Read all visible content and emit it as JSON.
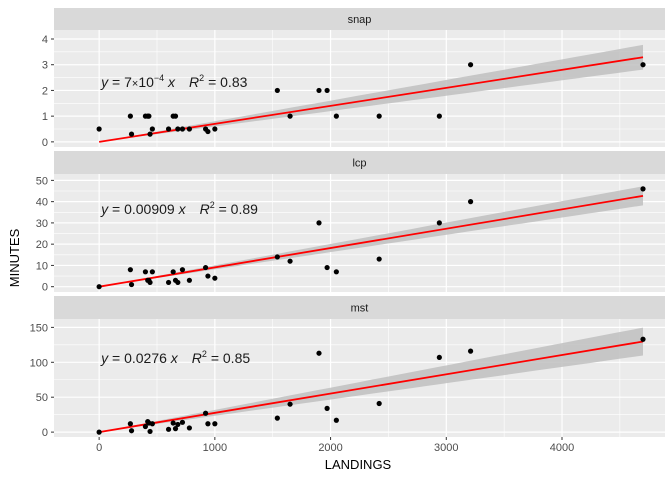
{
  "chart_data": {
    "type": "scatter",
    "xlabel": "LANDINGS",
    "ylabel": "MINUTES",
    "xlim": [
      -390,
      4890
    ],
    "xticks": [
      0,
      1000,
      2000,
      3000,
      4000
    ],
    "fit": "linear through origin with confidence band",
    "colors": {
      "points": "#000000",
      "fit_line": "#ff0000",
      "band": "#bfbfbf",
      "panel_bg": "#ebebeb",
      "strip_bg": "#d9d9d9",
      "grid": "#ffffff"
    },
    "x": [
      0,
      270,
      280,
      400,
      420,
      430,
      440,
      460,
      600,
      640,
      660,
      680,
      720,
      780,
      920,
      940,
      1000,
      1540,
      1650,
      1900,
      1970,
      2050,
      2420,
      2940,
      3210,
      4700
    ],
    "panels": [
      {
        "name": "snap",
        "ylim": [
          -0.2,
          4.35
        ],
        "yticks": [
          0,
          1,
          2,
          3,
          4
        ],
        "y": [
          0.5,
          1,
          0.3,
          1,
          1,
          1,
          0.3,
          0.5,
          0.5,
          1,
          1,
          0.5,
          0.5,
          0.5,
          0.5,
          0.4,
          0.5,
          2,
          1,
          2,
          2,
          1,
          1,
          1,
          3,
          3
        ],
        "slope": 0.0007,
        "band_halfwidth_at_max": 0.48,
        "equation": {
          "a": "y",
          "b": " = 7",
          "c": "×",
          "d": "10",
          "e": "−4",
          "f": " x",
          "g": "R",
          "h": "2",
          "i": " = 0.83"
        }
      },
      {
        "name": "lcp",
        "ylim": [
          -2.5,
          53
        ],
        "yticks": [
          0,
          10,
          20,
          30,
          40,
          50
        ],
        "y": [
          0,
          8,
          1,
          7,
          3,
          3,
          2,
          7,
          2,
          7,
          3,
          2,
          8,
          3,
          9,
          5,
          4,
          14,
          12,
          30,
          9,
          7,
          13,
          30,
          40,
          46
        ],
        "slope": 0.00909,
        "band_halfwidth_at_max": 4.5,
        "equation": {
          "a": "y",
          "b": " = 0.00909",
          "f": " x",
          "g": "R",
          "h": "2",
          "i": " = 0.89"
        }
      },
      {
        "name": "mst",
        "ylim": [
          -7,
          162
        ],
        "yticks": [
          0,
          50,
          100,
          150
        ],
        "y": [
          0,
          12,
          2,
          8,
          15,
          13,
          1,
          12,
          4,
          13,
          5,
          11,
          14,
          6,
          27,
          12,
          12,
          20,
          40,
          113,
          34,
          17,
          41,
          107,
          116,
          133
        ],
        "slope": 0.0276,
        "band_halfwidth_at_max": 20,
        "equation": {
          "a": "y",
          "b": " = 0.0276",
          "f": " x",
          "g": "R",
          "h": "2",
          "i": " = 0.85"
        }
      }
    ]
  }
}
